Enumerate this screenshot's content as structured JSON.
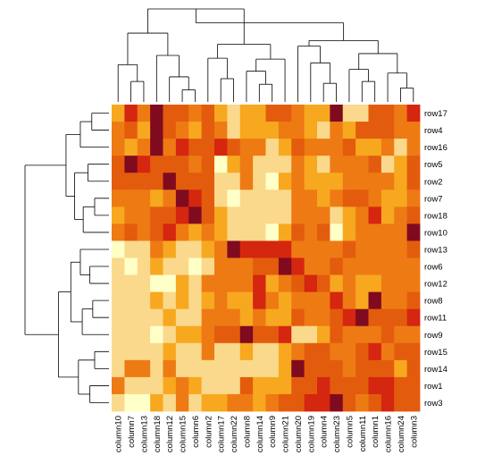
{
  "chart_data": {
    "type": "heatmap",
    "title": "",
    "xlabel": "",
    "ylabel": "",
    "columns": [
      "column10",
      "column7",
      "column13",
      "column18",
      "column12",
      "column15",
      "column6",
      "column2",
      "column17",
      "column22",
      "column8",
      "column14",
      "column9",
      "column21",
      "column20",
      "column19",
      "column4",
      "column23",
      "column5",
      "column11",
      "column1",
      "column16",
      "column24",
      "column3"
    ],
    "rows": [
      "row17",
      "row4",
      "row16",
      "row5",
      "row2",
      "row7",
      "row18",
      "row10",
      "row13",
      "row6",
      "row12",
      "row8",
      "row11",
      "row9",
      "row15",
      "row14",
      "row1",
      "row3"
    ],
    "scale": {
      "min": 0,
      "max": 6,
      "palette": [
        "#FFFFC8",
        "#FAD98C",
        "#F7A81F",
        "#EE7A14",
        "#E35C0E",
        "#D5260F",
        "#800B1F"
      ]
    },
    "values": [
      [
        2,
        5,
        3,
        6,
        4,
        4,
        3,
        4,
        2,
        1,
        2,
        2,
        4,
        4,
        3,
        2,
        2,
        6,
        1,
        1,
        4,
        4,
        3,
        5
      ],
      [
        3,
        4,
        2,
        6,
        4,
        3,
        2,
        4,
        3,
        1,
        2,
        2,
        2,
        3,
        3,
        2,
        1,
        3,
        2,
        4,
        4,
        4,
        3,
        3
      ],
      [
        3,
        2,
        3,
        6,
        3,
        5,
        4,
        4,
        5,
        4,
        3,
        3,
        1,
        2,
        4,
        3,
        3,
        3,
        4,
        2,
        2,
        3,
        1,
        3
      ],
      [
        4,
        6,
        5,
        4,
        4,
        4,
        3,
        4,
        0,
        2,
        3,
        1,
        1,
        1,
        3,
        2,
        1,
        3,
        3,
        3,
        4,
        1,
        2,
        4
      ],
      [
        4,
        4,
        4,
        4,
        6,
        4,
        4,
        4,
        1,
        1,
        3,
        1,
        0,
        2,
        3,
        2,
        2,
        2,
        3,
        3,
        3,
        3,
        2,
        4
      ],
      [
        3,
        3,
        3,
        2,
        3,
        6,
        5,
        4,
        1,
        0,
        1,
        1,
        1,
        1,
        3,
        3,
        2,
        3,
        4,
        4,
        3,
        2,
        2,
        3
      ],
      [
        2,
        3,
        3,
        4,
        4,
        5,
        6,
        4,
        2,
        1,
        1,
        1,
        1,
        1,
        3,
        3,
        3,
        1,
        2,
        3,
        5,
        2,
        3,
        4
      ],
      [
        3,
        4,
        3,
        4,
        5,
        3,
        2,
        3,
        2,
        1,
        1,
        1,
        0,
        2,
        4,
        3,
        4,
        0,
        2,
        3,
        3,
        3,
        3,
        6
      ],
      [
        0,
        1,
        1,
        3,
        2,
        1,
        1,
        2,
        3,
        6,
        5,
        5,
        5,
        5,
        3,
        3,
        3,
        3,
        4,
        3,
        3,
        3,
        3,
        4
      ],
      [
        1,
        0,
        1,
        2,
        1,
        1,
        0,
        1,
        3,
        3,
        3,
        4,
        4,
        6,
        5,
        3,
        3,
        4,
        3,
        3,
        3,
        3,
        3,
        3
      ],
      [
        1,
        1,
        1,
        0,
        0,
        2,
        1,
        3,
        3,
        3,
        3,
        5,
        2,
        3,
        4,
        5,
        4,
        2,
        3,
        2,
        2,
        3,
        3,
        3
      ],
      [
        1,
        1,
        1,
        2,
        1,
        2,
        1,
        2,
        3,
        2,
        2,
        5,
        3,
        2,
        3,
        3,
        3,
        5,
        3,
        2,
        6,
        3,
        3,
        4
      ],
      [
        1,
        1,
        1,
        1,
        2,
        1,
        1,
        3,
        3,
        3,
        2,
        3,
        2,
        2,
        4,
        3,
        3,
        4,
        5,
        6,
        4,
        4,
        4,
        5
      ],
      [
        1,
        1,
        1,
        0,
        1,
        2,
        2,
        3,
        4,
        4,
        6,
        4,
        4,
        5,
        1,
        1,
        2,
        4,
        3,
        3,
        3,
        4,
        3,
        3
      ],
      [
        1,
        1,
        1,
        1,
        2,
        1,
        1,
        3,
        1,
        1,
        2,
        1,
        1,
        2,
        3,
        4,
        4,
        3,
        3,
        4,
        5,
        3,
        4,
        4
      ],
      [
        1,
        3,
        3,
        1,
        3,
        1,
        1,
        1,
        1,
        1,
        1,
        1,
        1,
        2,
        6,
        4,
        4,
        4,
        3,
        4,
        4,
        4,
        2,
        4
      ],
      [
        3,
        1,
        1,
        1,
        2,
        3,
        2,
        1,
        1,
        1,
        4,
        2,
        2,
        2,
        4,
        4,
        5,
        4,
        4,
        4,
        5,
        5,
        4,
        4
      ],
      [
        1,
        0,
        0,
        2,
        1,
        3,
        1,
        2,
        2,
        3,
        3,
        2,
        3,
        4,
        4,
        5,
        5,
        6,
        4,
        3,
        4,
        5,
        4,
        4
      ]
    ],
    "grid": false,
    "legend": "none"
  }
}
